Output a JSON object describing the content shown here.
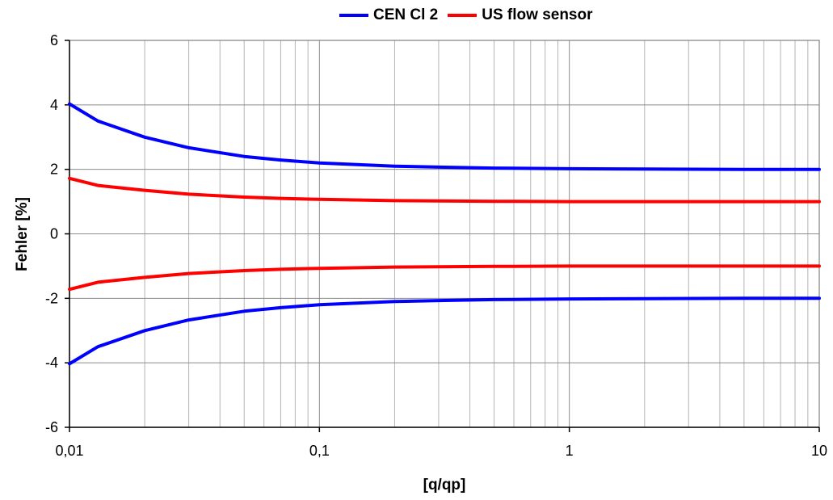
{
  "chart_data": {
    "type": "line",
    "title": "",
    "xlabel": "[q/qp]",
    "ylabel": "Fehler [%]",
    "xscale": "log",
    "xlim": [
      0.01,
      10
    ],
    "ylim": [
      -6,
      6
    ],
    "xticks": [
      0.01,
      0.1,
      1,
      10
    ],
    "xtick_labels": [
      "0,01",
      "0,1",
      "1",
      "10"
    ],
    "yticks": [
      -6,
      -4,
      -2,
      0,
      2,
      4,
      6
    ],
    "ytick_labels": [
      "-6",
      "-4",
      "-2",
      "0",
      "2",
      "4",
      "6"
    ],
    "grid": true,
    "legend_position": "top-center",
    "series": [
      {
        "name": "CEN Cl 2",
        "color": "#0000ff",
        "x": [
          0.01,
          0.013,
          0.02,
          0.03,
          0.05,
          0.07,
          0.1,
          0.2,
          0.3,
          0.5,
          1,
          2,
          5,
          10
        ],
        "upper": [
          4.03,
          3.5,
          3.0,
          2.67,
          2.4,
          2.29,
          2.2,
          2.1,
          2.07,
          2.04,
          2.02,
          2.01,
          2.0,
          2.0
        ],
        "lower": [
          -4.03,
          -3.5,
          -3.0,
          -2.67,
          -2.4,
          -2.29,
          -2.2,
          -2.1,
          -2.07,
          -2.04,
          -2.02,
          -2.01,
          -2.0,
          -2.0
        ]
      },
      {
        "name": "US flow sensor",
        "color": "#ff0000",
        "x": [
          0.01,
          0.013,
          0.02,
          0.03,
          0.05,
          0.07,
          0.1,
          0.2,
          0.3,
          0.5,
          1,
          2,
          5,
          10
        ],
        "upper": [
          1.72,
          1.5,
          1.35,
          1.23,
          1.14,
          1.1,
          1.07,
          1.03,
          1.02,
          1.01,
          1.0,
          1.0,
          1.0,
          1.0
        ],
        "lower": [
          -1.72,
          -1.5,
          -1.35,
          -1.23,
          -1.14,
          -1.1,
          -1.07,
          -1.03,
          -1.02,
          -1.01,
          -1.0,
          -1.0,
          -1.0,
          -1.0
        ]
      }
    ]
  }
}
